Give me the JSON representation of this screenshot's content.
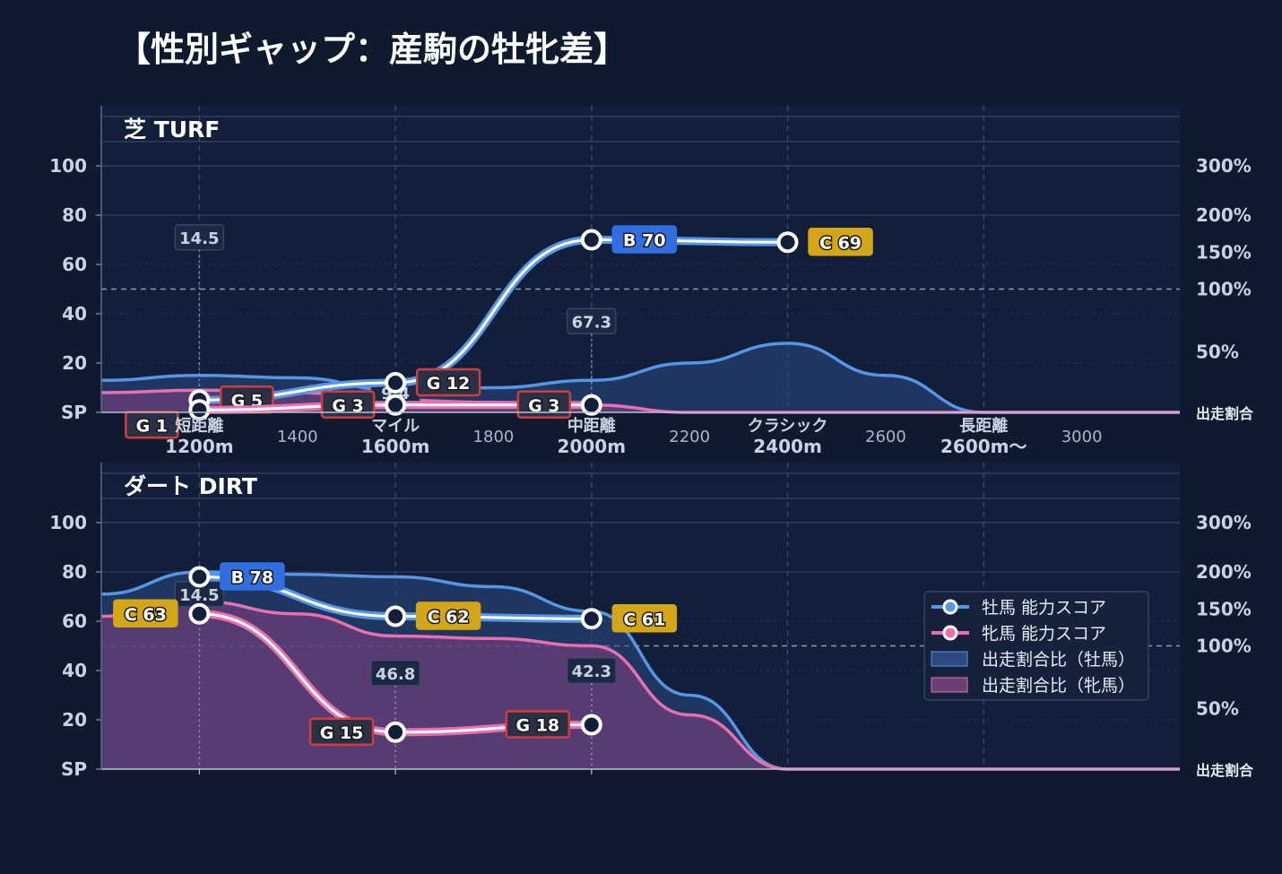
{
  "title": "【性別ギャップ：産駒の牡牝差】",
  "colors": {
    "background": "#0f1a2f",
    "panel": "#121f3a",
    "male": "#5596e6",
    "female": "#e870b0",
    "male_area": "#2a4a80",
    "female_area": "#6a3f78",
    "grade_G": "#d23c3c",
    "grade_B": "#2f6fe0",
    "grade_C": "#d4a514"
  },
  "legend": {
    "male_score": "牡馬 能力スコア",
    "female_score": "牝馬 能力スコア",
    "male_ratio": "出走割合比（牡馬）",
    "female_ratio": "出走割合比（牝馬）"
  },
  "chart_data": [
    {
      "type": "line",
      "panel_label": "芝 TURF",
      "y_ticks": [
        "SP",
        "20",
        "40",
        "60",
        "80",
        "100"
      ],
      "y2_ticks": [
        "出走割合",
        "50%",
        "100%",
        "150%",
        "200%",
        "300%"
      ],
      "ylim": [
        0,
        100
      ],
      "x_categories": [
        {
          "name": "短距離",
          "dist": "1200m",
          "x": 1200
        },
        {
          "name": "マイル",
          "dist": "1600m",
          "x": 1600
        },
        {
          "name": "中距離",
          "dist": "2000m",
          "x": 2000
        },
        {
          "name": "クラシック",
          "dist": "2400m",
          "x": 2400
        },
        {
          "name": "長距離",
          "dist": "2600m〜",
          "x": 2800
        }
      ],
      "x_numeric_ticks": [
        1400,
        1800,
        2200,
        2600,
        3000
      ],
      "series": [
        {
          "name": "牡馬 能力スコア",
          "points": [
            {
              "x": 1200,
              "y": 5,
              "grade": "G",
              "label": "G 5"
            },
            {
              "x": 1600,
              "y": 12,
              "grade": "G",
              "label": "G 12"
            },
            {
              "x": 2000,
              "y": 70,
              "grade": "B",
              "label": "B 70"
            },
            {
              "x": 2400,
              "y": 69,
              "grade": "C",
              "label": "C 69"
            }
          ]
        },
        {
          "name": "牝馬 能力スコア",
          "points": [
            {
              "x": 1200,
              "y": 1,
              "grade": "G",
              "label": "G 1"
            },
            {
              "x": 1600,
              "y": 3,
              "grade": "G",
              "label": "G 3"
            },
            {
              "x": 2000,
              "y": 3,
              "grade": "G",
              "label": "G 3"
            }
          ]
        }
      ],
      "ratio_male": [
        [
          1000,
          13
        ],
        [
          1200,
          15
        ],
        [
          1400,
          14
        ],
        [
          1600,
          9
        ],
        [
          1800,
          10
        ],
        [
          2000,
          13
        ],
        [
          2200,
          20
        ],
        [
          2400,
          28
        ],
        [
          2600,
          15
        ],
        [
          2800,
          0
        ],
        [
          3200,
          0
        ]
      ],
      "ratio_female": [
        [
          1000,
          8
        ],
        [
          1200,
          9
        ],
        [
          1400,
          8
        ],
        [
          1600,
          5
        ],
        [
          1800,
          4
        ],
        [
          2000,
          3
        ],
        [
          2200,
          0
        ],
        [
          2400,
          0
        ],
        [
          2800,
          0
        ],
        [
          3200,
          0
        ]
      ],
      "ratio_labels": [
        {
          "x": 1200,
          "text": "14.5"
        },
        {
          "x": 1600,
          "text": "9.4"
        },
        {
          "x": 2000,
          "text": "67.3"
        }
      ]
    },
    {
      "type": "line",
      "panel_label": "ダート DIRT",
      "y_ticks": [
        "SP",
        "20",
        "40",
        "60",
        "80",
        "100"
      ],
      "y2_ticks": [
        "出走割合",
        "50%",
        "100%",
        "150%",
        "200%",
        "300%"
      ],
      "ylim": [
        0,
        100
      ],
      "x_categories": [],
      "x_numeric_ticks": [],
      "series": [
        {
          "name": "牡馬 能力スコア",
          "points": [
            {
              "x": 1200,
              "y": 78,
              "grade": "B",
              "label": "B 78"
            },
            {
              "x": 1600,
              "y": 62,
              "grade": "C",
              "label": "C 62"
            },
            {
              "x": 2000,
              "y": 61,
              "grade": "C",
              "label": "C 61"
            }
          ]
        },
        {
          "name": "牝馬 能力スコア",
          "points": [
            {
              "x": 1200,
              "y": 63,
              "grade": "C",
              "label": "C 63"
            },
            {
              "x": 1600,
              "y": 15,
              "grade": "G",
              "label": "G 15"
            },
            {
              "x": 2000,
              "y": 18,
              "grade": "G",
              "label": "G 18"
            }
          ]
        }
      ],
      "ratio_male": [
        [
          1000,
          71
        ],
        [
          1200,
          80
        ],
        [
          1400,
          79
        ],
        [
          1600,
          78
        ],
        [
          1800,
          74
        ],
        [
          2000,
          64
        ],
        [
          2200,
          30
        ],
        [
          2400,
          0
        ],
        [
          3200,
          0
        ]
      ],
      "ratio_female": [
        [
          1000,
          62
        ],
        [
          1200,
          68
        ],
        [
          1400,
          63
        ],
        [
          1600,
          54
        ],
        [
          1800,
          53
        ],
        [
          2000,
          50
        ],
        [
          2200,
          22
        ],
        [
          2400,
          0
        ],
        [
          3200,
          0
        ]
      ],
      "ratio_labels": [
        {
          "x": 1200,
          "text": "14.5"
        },
        {
          "x": 1600,
          "text": "46.8"
        },
        {
          "x": 2000,
          "text": "42.3"
        }
      ]
    }
  ]
}
